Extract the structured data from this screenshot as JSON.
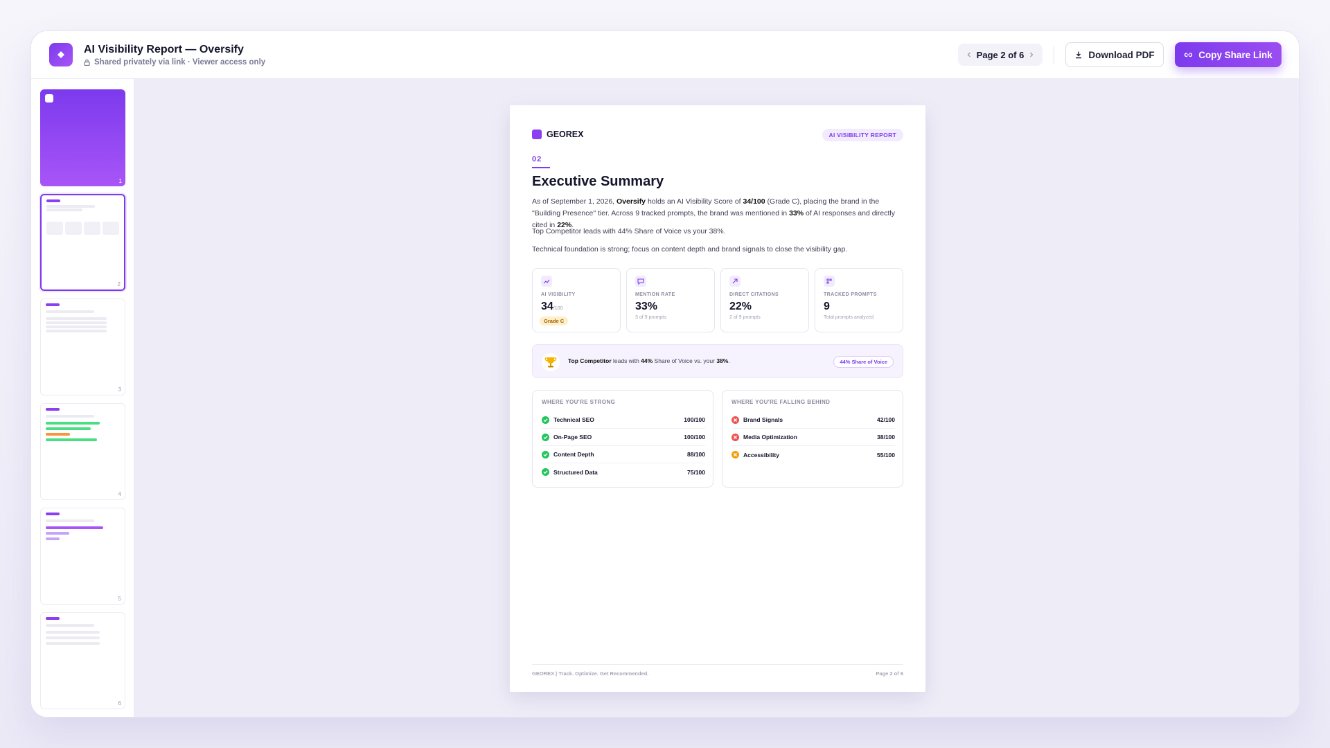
{
  "header": {
    "title": "AI Visibility Report — Oversify",
    "subtitle": "Shared privately via link · Viewer access only",
    "page_indicator": "Page 2 of 6",
    "download": "Download PDF",
    "share": "Copy Share Link"
  },
  "sidebar": {
    "pages": [
      1,
      2,
      3,
      4,
      5,
      6
    ],
    "active_page": 2
  },
  "document": {
    "brand": "GEOREX",
    "badge": "AI VISIBILITY REPORT",
    "section_number": "02",
    "heading": "Executive Summary",
    "paragraphs": [
      [
        {
          "text": "As of September 1, 2026, "
        },
        {
          "text": "Oversify",
          "bold": true
        },
        {
          "text": " holds an AI Visibility Score of "
        },
        {
          "text": "34/100",
          "bold": true
        },
        {
          "text": " (Grade C), placing the brand in the \"Building Presence\" tier. Across 9 tracked prompts, the brand was mentioned in "
        },
        {
          "text": "33%",
          "bold": true
        },
        {
          "text": " of AI responses and directly cited in "
        },
        {
          "text": "22%",
          "bold": true
        },
        {
          "text": "."
        }
      ],
      [
        {
          "text": "Top Competitor leads with 44% Share of Voice vs your 38%."
        }
      ],
      [
        {
          "text": "Technical foundation is strong; focus on content depth and brand signals to close the visibility gap."
        }
      ]
    ],
    "stats": [
      {
        "label": "AI VISIBILITY",
        "value": "34",
        "unit": "/100",
        "badge": "Grade C"
      },
      {
        "label": "MENTION RATE",
        "value": "33%",
        "note": "3 of 9 prompts"
      },
      {
        "label": "DIRECT CITATIONS",
        "value": "22%",
        "note": "2 of 9 prompts"
      },
      {
        "label": "TRACKED PROMPTS",
        "value": "9",
        "note": "Total prompts analyzed"
      }
    ],
    "competitor": {
      "runs": [
        {
          "text": "Top Competitor",
          "bold": true
        },
        {
          "text": " leads with "
        },
        {
          "text": "44%",
          "bold": true
        },
        {
          "text": " Share of Voice vs. your "
        },
        {
          "text": "38%",
          "bold": true
        },
        {
          "text": "."
        }
      ],
      "pill": "44% Share of Voice"
    },
    "columns": [
      {
        "title": "WHERE YOU'RE STRONG",
        "items": [
          {
            "name": "Technical SEO",
            "score": "100/100",
            "status": "pass"
          },
          {
            "name": "On-Page SEO",
            "score": "100/100",
            "status": "pass"
          },
          {
            "name": "Content Depth",
            "score": "88/100",
            "status": "pass"
          },
          {
            "name": "Structured Data",
            "score": "75/100",
            "status": "pass"
          }
        ]
      },
      {
        "title": "WHERE YOU'RE FALLING BEHIND",
        "items": [
          {
            "name": "Brand Signals",
            "score": "42/100",
            "status": "fail"
          },
          {
            "name": "Media Optimization",
            "score": "38/100",
            "status": "fail"
          },
          {
            "name": "Accessibility",
            "score": "55/100",
            "status": "warn"
          }
        ]
      }
    ],
    "footer": {
      "left": "GEOREX | Track. Optimize. Get Recommended.",
      "right": "Page 2 of 6"
    }
  }
}
